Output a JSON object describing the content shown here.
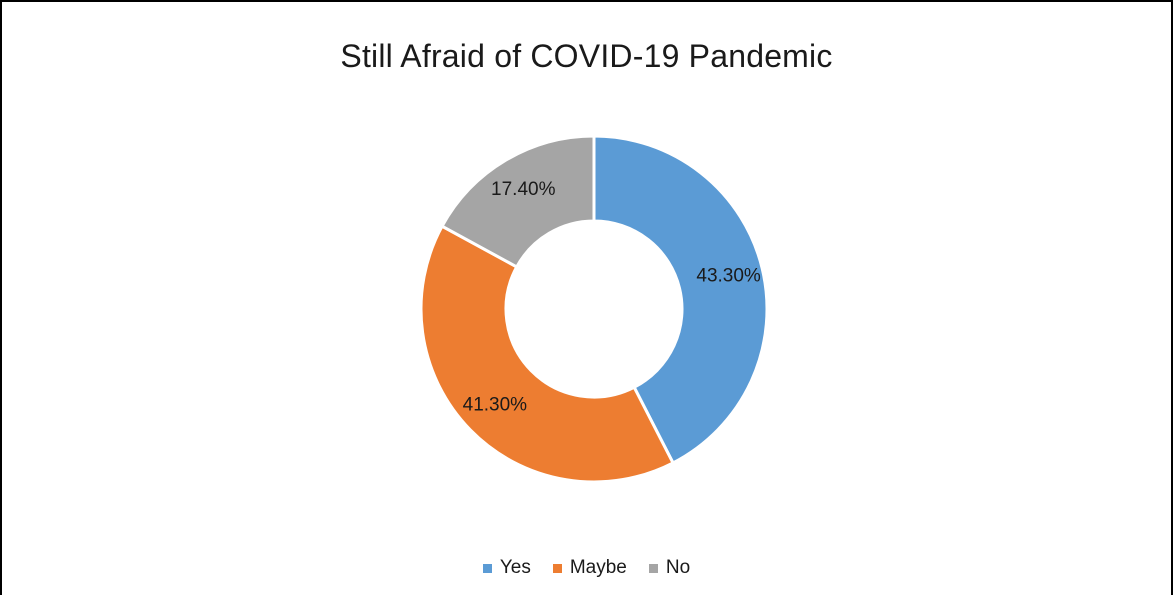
{
  "chart_data": {
    "type": "pie",
    "variant": "donut",
    "title": "Still Afraid of COVID-19 Pandemic",
    "categories": [
      "Yes",
      "Maybe",
      "No"
    ],
    "values": [
      43.3,
      41.3,
      17.4
    ],
    "labels": [
      "43.30%",
      "41.30%",
      "17.40%"
    ],
    "colors": [
      "#5B9BD5",
      "#ED7D31",
      "#A5A5A5"
    ],
    "legend_position": "bottom"
  }
}
